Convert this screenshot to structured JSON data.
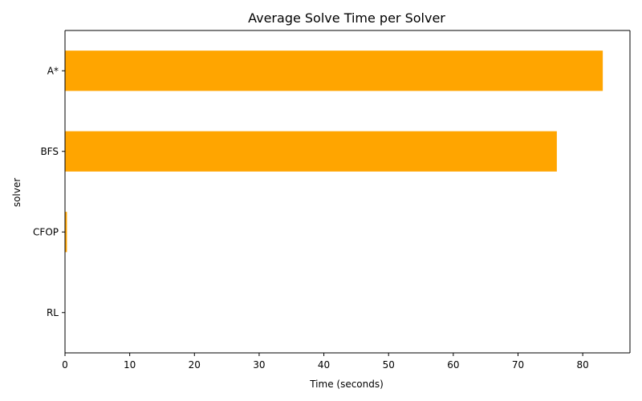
{
  "chart_data": {
    "type": "bar",
    "orientation": "horizontal",
    "title": "Average Solve Time per Solver",
    "xlabel": "Time (seconds)",
    "ylabel": "solver",
    "categories": [
      "RL",
      "CFOP",
      "BFS",
      "A*"
    ],
    "values": [
      0.0,
      0.3,
      76.0,
      83.1
    ],
    "xlim": [
      0,
      87.3
    ],
    "xticks": [
      0,
      10,
      20,
      30,
      40,
      50,
      60,
      70,
      80
    ],
    "bar_color": "#FFA500",
    "grid": false,
    "legend": "none"
  }
}
